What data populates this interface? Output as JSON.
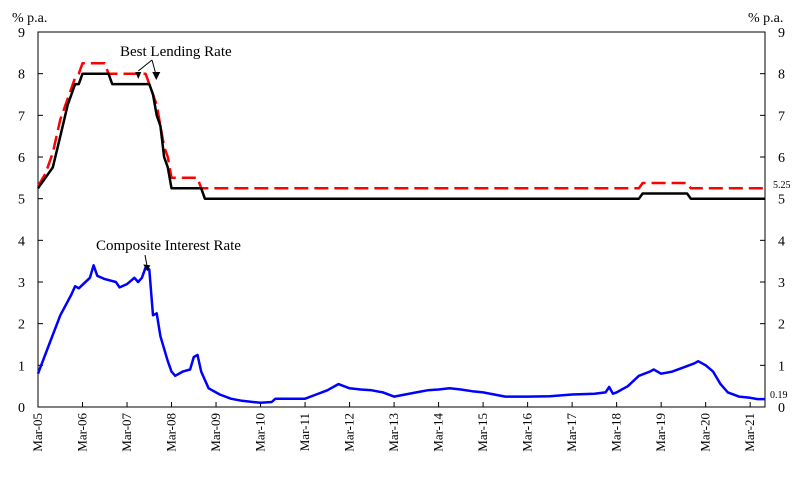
{
  "chart_data": {
    "type": "line",
    "unit_left": "% p.a.",
    "unit_right": "% p.a.",
    "xlabel": "",
    "ylabel": "",
    "ylim": [
      0,
      9
    ],
    "yticks": [
      0,
      1,
      2,
      3,
      4,
      5,
      6,
      7,
      8,
      9
    ],
    "xlim": [
      "2005-03",
      "2021-07"
    ],
    "x_tick_labels": [
      "Mar-05",
      "Mar-06",
      "Mar-07",
      "Mar-08",
      "Mar-09",
      "Mar-10",
      "Mar-11",
      "Mar-12",
      "Mar-13",
      "Mar-14",
      "Mar-15",
      "Mar-16",
      "Mar-17",
      "Mar-18",
      "Mar-19",
      "Mar-20",
      "Mar-21"
    ],
    "grid": false,
    "annotations": [
      {
        "text": "Best Lending Rate",
        "arrow_to": [
          "2007-09",
          8.0
        ]
      },
      {
        "text": "Composite Interest Rate",
        "arrow_to": [
          "2007-09",
          3.4
        ]
      }
    ],
    "end_labels": [
      "5.25",
      "0.19"
    ],
    "series": [
      {
        "name": "",
        "color": "#ff0000",
        "dash": "dashed",
        "points": [
          [
            "2005-03",
            5.3
          ],
          [
            "2005-05",
            5.6
          ],
          [
            "2005-07",
            6.1
          ],
          [
            "2005-09",
            6.9
          ],
          [
            "2005-11",
            7.4
          ],
          [
            "2006-01",
            7.9
          ],
          [
            "2006-02",
            8.0
          ],
          [
            "2006-03",
            8.25
          ],
          [
            "2006-09",
            8.25
          ],
          [
            "2006-10",
            8.0
          ],
          [
            "2007-08",
            8.0
          ],
          [
            "2007-09",
            7.75
          ],
          [
            "2007-10",
            7.5
          ],
          [
            "2007-11",
            7.25
          ],
          [
            "2007-12",
            6.75
          ],
          [
            "2008-01",
            6.25
          ],
          [
            "2008-02",
            6.0
          ],
          [
            "2008-03",
            5.5
          ],
          [
            "2008-10",
            5.5
          ],
          [
            "2008-11",
            5.25
          ],
          [
            "2018-09",
            5.25
          ],
          [
            "2018-10",
            5.375
          ],
          [
            "2019-10",
            5.375
          ],
          [
            "2019-11",
            5.25
          ],
          [
            "2021-07",
            5.25
          ]
        ]
      },
      {
        "name": "",
        "color": "#000000",
        "dash": "solid",
        "points": [
          [
            "2005-03",
            5.25
          ],
          [
            "2005-05",
            5.5
          ],
          [
            "2005-07",
            5.75
          ],
          [
            "2005-09",
            6.5
          ],
          [
            "2005-11",
            7.25
          ],
          [
            "2006-01",
            7.75
          ],
          [
            "2006-02",
            7.75
          ],
          [
            "2006-03",
            8.0
          ],
          [
            "2006-10",
            8.0
          ],
          [
            "2006-11",
            7.75
          ],
          [
            "2007-09",
            7.75
          ],
          [
            "2007-10",
            7.5
          ],
          [
            "2007-11",
            7.0
          ],
          [
            "2007-12",
            6.75
          ],
          [
            "2008-01",
            6.0
          ],
          [
            "2008-02",
            5.75
          ],
          [
            "2008-03",
            5.25
          ],
          [
            "2008-11",
            5.25
          ],
          [
            "2008-12",
            5.0
          ],
          [
            "2018-09",
            5.0
          ],
          [
            "2018-10",
            5.125
          ],
          [
            "2019-10",
            5.125
          ],
          [
            "2019-11",
            5.0
          ],
          [
            "2021-07",
            5.0
          ]
        ]
      },
      {
        "name": "",
        "color": "#0000ff",
        "dash": "solid",
        "points": [
          [
            "2005-03",
            0.8
          ],
          [
            "2005-06",
            1.5
          ],
          [
            "2005-09",
            2.2
          ],
          [
            "2005-12",
            2.7
          ],
          [
            "2006-01",
            2.9
          ],
          [
            "2006-02",
            2.85
          ],
          [
            "2006-05",
            3.1
          ],
          [
            "2006-06",
            3.4
          ],
          [
            "2006-07",
            3.15
          ],
          [
            "2006-09",
            3.07
          ],
          [
            "2006-12",
            3.0
          ],
          [
            "2007-01",
            2.87
          ],
          [
            "2007-03",
            2.95
          ],
          [
            "2007-05",
            3.1
          ],
          [
            "2007-06",
            3.0
          ],
          [
            "2007-07",
            3.1
          ],
          [
            "2007-08",
            3.35
          ],
          [
            "2007-09",
            3.3
          ],
          [
            "2007-10",
            2.2
          ],
          [
            "2007-11",
            2.25
          ],
          [
            "2007-12",
            1.7
          ],
          [
            "2008-02",
            1.1
          ],
          [
            "2008-03",
            0.85
          ],
          [
            "2008-04",
            0.75
          ],
          [
            "2008-06",
            0.85
          ],
          [
            "2008-08",
            0.9
          ],
          [
            "2008-09",
            1.2
          ],
          [
            "2008-10",
            1.25
          ],
          [
            "2008-11",
            0.85
          ],
          [
            "2009-01",
            0.45
          ],
          [
            "2009-04",
            0.3
          ],
          [
            "2009-07",
            0.2
          ],
          [
            "2009-10",
            0.15
          ],
          [
            "2010-03",
            0.1
          ],
          [
            "2010-06",
            0.12
          ],
          [
            "2010-07",
            0.2
          ],
          [
            "2011-03",
            0.2
          ],
          [
            "2011-06",
            0.3
          ],
          [
            "2011-09",
            0.4
          ],
          [
            "2011-12",
            0.55
          ],
          [
            "2012-03",
            0.45
          ],
          [
            "2012-06",
            0.42
          ],
          [
            "2012-09",
            0.4
          ],
          [
            "2012-12",
            0.35
          ],
          [
            "2013-03",
            0.25
          ],
          [
            "2013-06",
            0.3
          ],
          [
            "2013-09",
            0.35
          ],
          [
            "2013-12",
            0.4
          ],
          [
            "2014-03",
            0.42
          ],
          [
            "2014-06",
            0.45
          ],
          [
            "2014-09",
            0.42
          ],
          [
            "2014-12",
            0.38
          ],
          [
            "2015-03",
            0.35
          ],
          [
            "2015-06",
            0.3
          ],
          [
            "2015-09",
            0.25
          ],
          [
            "2016-03",
            0.25
          ],
          [
            "2016-09",
            0.26
          ],
          [
            "2017-03",
            0.3
          ],
          [
            "2017-09",
            0.32
          ],
          [
            "2017-12",
            0.35
          ],
          [
            "2018-01",
            0.48
          ],
          [
            "2018-02",
            0.32
          ],
          [
            "2018-03",
            0.35
          ],
          [
            "2018-06",
            0.5
          ],
          [
            "2018-09",
            0.75
          ],
          [
            "2018-12",
            0.85
          ],
          [
            "2019-01",
            0.9
          ],
          [
            "2019-03",
            0.8
          ],
          [
            "2019-06",
            0.85
          ],
          [
            "2019-09",
            0.95
          ],
          [
            "2019-12",
            1.05
          ],
          [
            "2020-01",
            1.1
          ],
          [
            "2020-03",
            1.0
          ],
          [
            "2020-05",
            0.85
          ],
          [
            "2020-07",
            0.55
          ],
          [
            "2020-09",
            0.35
          ],
          [
            "2020-12",
            0.25
          ],
          [
            "2021-03",
            0.22
          ],
          [
            "2021-05",
            0.19
          ],
          [
            "2021-07",
            0.19
          ]
        ]
      }
    ]
  }
}
